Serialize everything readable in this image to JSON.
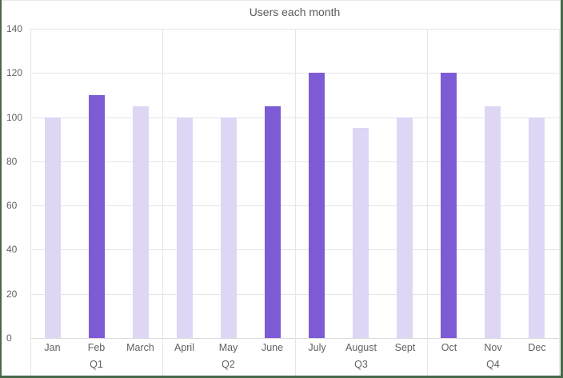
{
  "window": {
    "border_color": "#47694c",
    "top_edge_color": "#e9e9e9",
    "background": "#ffffff"
  },
  "chart_data": {
    "type": "bar",
    "title": "Users each month",
    "categories": [
      "Jan",
      "Feb",
      "March",
      "April",
      "May",
      "June",
      "July",
      "August",
      "Sept",
      "Oct",
      "Nov",
      "Dec"
    ],
    "values": [
      100,
      110,
      105,
      100,
      100,
      105,
      120,
      95,
      100,
      120,
      105,
      100
    ],
    "groups": [
      {
        "label": "Q1",
        "months": [
          "Jan",
          "Feb",
          "March"
        ]
      },
      {
        "label": "Q2",
        "months": [
          "April",
          "May",
          "June"
        ]
      },
      {
        "label": "Q3",
        "months": [
          "July",
          "August",
          "Sept"
        ]
      },
      {
        "label": "Q4",
        "months": [
          "Oct",
          "Nov",
          "Dec"
        ]
      }
    ],
    "highlighted_months": [
      "Feb",
      "June",
      "July",
      "Oct"
    ],
    "yticks": [
      0,
      20,
      40,
      60,
      80,
      100,
      120,
      140
    ],
    "ylim": [
      0,
      140
    ],
    "xlabel": "",
    "ylabel": "",
    "grid": true,
    "legend": "none",
    "colors": {
      "bar_default": "#ded6f4",
      "bar_highlight": "#7d5bd5",
      "gridline": "#e6e6e6",
      "axis_line": "#dcdcdc",
      "axis_text": "#616161",
      "title_text": "#5a5a5a"
    }
  }
}
